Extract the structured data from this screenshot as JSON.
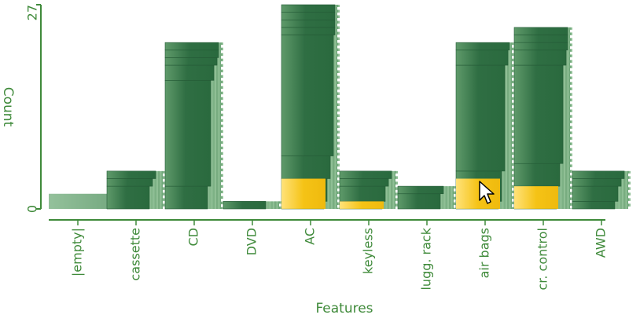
{
  "chart_data": {
    "type": "bar",
    "title": "",
    "xlabel": "Features",
    "ylabel": "Count",
    "ylim": [
      0,
      27
    ],
    "y_ticks": [
      "0",
      "27"
    ],
    "categories": [
      "|empty|",
      "cassette",
      "CD",
      "DVD",
      "AC",
      "keyless",
      "lugg. rack",
      "air bags",
      "cr. control",
      "AWD"
    ],
    "values": [
      2,
      5,
      22,
      1,
      27,
      5,
      3,
      22,
      24,
      5
    ],
    "highlighted_values": [
      0,
      0,
      0,
      0,
      4,
      1,
      0,
      4,
      3,
      0
    ],
    "bar_segments": [
      [
        2
      ],
      [
        3,
        1,
        1
      ],
      [
        3,
        14,
        2,
        1,
        1,
        1
      ],
      [
        1
      ],
      [
        1,
        3,
        3,
        16,
        1,
        1,
        1,
        1
      ],
      [
        1,
        2,
        1,
        1
      ],
      [
        2,
        1
      ],
      [
        1,
        4,
        14,
        2,
        1
      ],
      [
        3,
        3,
        13,
        2,
        1,
        1,
        1
      ],
      [
        1,
        2,
        1,
        1
      ]
    ],
    "grid": false,
    "colors": {
      "bar_dark": "#2f6e43",
      "bar_mid": "#4f8d5b",
      "bar_light": "#8fbf95",
      "empty_bar": "#7fb08a",
      "highlight": "#f2c012",
      "highlight_light": "#ffe070",
      "axis": "#3f8a3a",
      "text": "#3f8a3a"
    }
  }
}
